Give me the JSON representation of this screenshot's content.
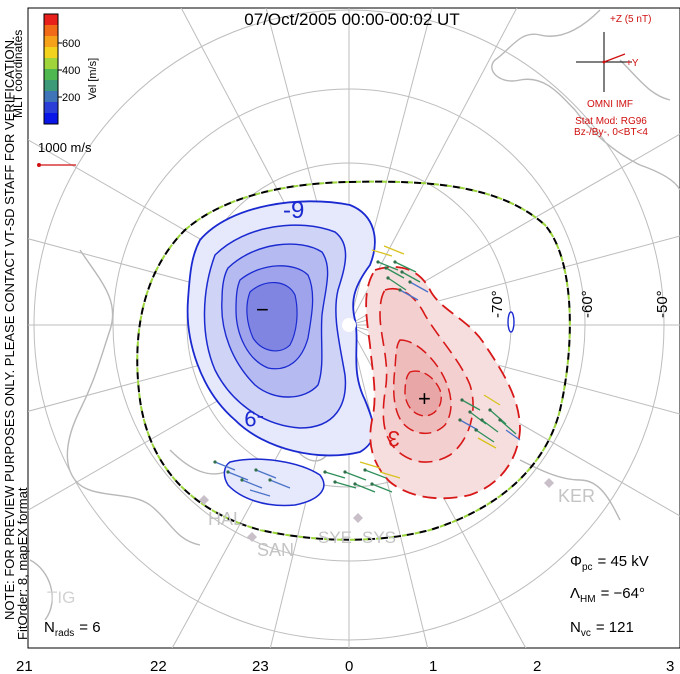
{
  "title": "07/Oct/2005 00:00-00:02 UT",
  "left_notes": {
    "coords": "MLT coordinates",
    "preview": "NOTE: FOR PREVIEW PURPOSES ONLY. PLEASE CONTACT VT-SD STAFF FOR VERIFICATION.",
    "fit": "FitOrder: 8, mapEX format"
  },
  "colorbar": {
    "label": "Vel [m/s]",
    "ticks": [
      "600",
      "400",
      "200"
    ],
    "colors": [
      "#e8201c",
      "#f06a18",
      "#f5a21a",
      "#f3d21e",
      "#9fd43a",
      "#4fb850",
      "#3d9a78",
      "#3f74b8",
      "#2b3fd8",
      "#0a16e8"
    ]
  },
  "reference_vector": {
    "label": "1000 m/s",
    "color": "#d01010"
  },
  "imf": {
    "scale": "+Z (5 nT)",
    "y_label": "+Y",
    "source": "OMNI IMF",
    "model": "Stat Mod: RG96",
    "condition": "Bz-/By-, 0<BT<4"
  },
  "map_labels": {
    "latitudes": [
      "-70°",
      "-60°",
      "-50°"
    ],
    "contours": [
      "-9",
      "-9",
      "3"
    ],
    "min_marker": "−",
    "max_marker": "+",
    "stations": [
      "KER",
      "HAL",
      "SAN",
      "SYE",
      "SYS",
      "TIG"
    ]
  },
  "stats": {
    "nrads": {
      "sym": "N",
      "sub": "rads",
      "value": "= 6"
    },
    "phi": {
      "sym": "Φ",
      "sub": "pc",
      "value": "= 45 kV"
    },
    "lambda": {
      "sym": "Λ",
      "sub": "HM",
      "value": "= −64°"
    },
    "nvc": {
      "sym": "N",
      "sub": "vc",
      "value": "= 121"
    }
  },
  "mlt_axis": [
    "21",
    "22",
    "23",
    "0",
    "1",
    "2",
    "3"
  ]
}
